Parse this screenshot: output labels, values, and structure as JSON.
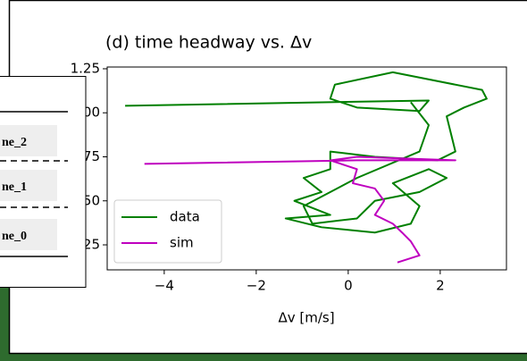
{
  "chart_data": {
    "type": "line",
    "title": "(d) time headway vs. Δv",
    "x_label": "Δv [m/s]",
    "xlim": [
      -5.24,
      3.44
    ],
    "ylim": [
      0.108,
      1.26
    ],
    "xticks": [
      {
        "value": -4,
        "label": "−4"
      },
      {
        "value": -2,
        "label": "−2"
      },
      0,
      2
    ],
    "yticks": [
      0.25,
      {
        "value": 0.5,
        "label": "0.50"
      },
      0.75,
      {
        "value": 1.0,
        "label": "1.00"
      },
      1.25
    ],
    "legend": "lower left",
    "series": [
      {
        "name": "data",
        "color": "#008000",
        "x": [
          -4.85,
          1.75,
          1.55,
          0.19,
          -0.39,
          -0.29,
          0.97,
          2.91,
          3.01,
          2.52,
          2.14,
          2.33,
          1.94,
          0.58,
          -0.39,
          -0.39,
          -0.97,
          -0.58,
          -1.17,
          -0.39,
          -1.36,
          -0.58,
          0.58,
          1.36,
          1.55,
          0.97,
          1.75,
          2.14,
          1.55,
          0.58,
          0.19,
          -0.78,
          -0.97,
          0.19,
          1.55,
          1.75,
          1.36
        ],
        "values": [
          1.04,
          1.07,
          1.01,
          1.03,
          1.08,
          1.16,
          1.23,
          1.13,
          1.08,
          1.03,
          0.98,
          0.78,
          0.73,
          0.75,
          0.78,
          0.68,
          0.63,
          0.55,
          0.5,
          0.42,
          0.4,
          0.35,
          0.32,
          0.37,
          0.47,
          0.6,
          0.68,
          0.63,
          0.55,
          0.5,
          0.4,
          0.37,
          0.47,
          0.63,
          0.78,
          0.93,
          1.06
        ]
      },
      {
        "name": "sim",
        "color": "#bf00bf",
        "x": [
          -4.43,
          0.19,
          2.33,
          0.19,
          -0.39,
          0.19,
          0.1,
          0.58,
          0.78,
          0.58,
          0.97,
          1.17,
          1.36,
          1.55,
          1.07
        ],
        "values": [
          0.71,
          0.73,
          0.73,
          0.75,
          0.73,
          0.68,
          0.6,
          0.57,
          0.5,
          0.42,
          0.37,
          0.32,
          0.27,
          0.19,
          0.15
        ]
      }
    ]
  },
  "overlay": {
    "rows": [
      "ne_2",
      "ne_1",
      "ne_0"
    ]
  }
}
